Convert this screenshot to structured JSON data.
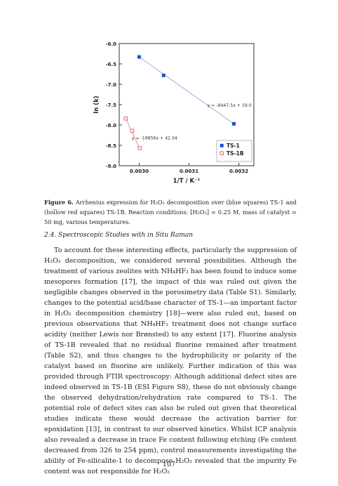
{
  "chart_data": {
    "type": "scatter",
    "xlabel": "1/T / K⁻¹",
    "ylabel": "ln (k)",
    "xlim": [
      0.00296,
      0.00323
    ],
    "ylim": [
      -9.0,
      -6.0
    ],
    "xticks": [
      "0.0030",
      "0.0031",
      "0.0032"
    ],
    "yticks": [
      "-6.0",
      "-6.5",
      "-7.0",
      "-7.5",
      "-8.0",
      "-8.5",
      "-9.0"
    ],
    "grid": false,
    "legend_position": "bottom-right",
    "series": [
      {
        "name": "TS-1",
        "marker": "filled-square",
        "color": "#1f4fd1",
        "x": [
          0.003,
          0.003049,
          0.00319
        ],
        "y": [
          -6.33,
          -6.78,
          -7.97
        ],
        "fit_label": "y = -8447.5x + 19.0"
      },
      {
        "name": "TS-1B",
        "marker": "hollow-square",
        "color": "#e05a5a",
        "x": [
          0.002973,
          0.002986,
          0.003001
        ],
        "y": [
          -7.84,
          -8.14,
          -8.57
        ],
        "fit_label": "y = -16856x + 42.04"
      }
    ]
  },
  "caption": {
    "label": "Figure 6.",
    "text": "Arrhenius expression for H₂O₂ decomposition over (blue squares) TS-1 and (hollow red squares) TS-1B. Reaction conditions: [H₂O₂] = 0.25 M, mass of catalyst = 50 mg, various temperatures."
  },
  "section_heading": "2.4. Spectroscopic Studies with in Situ Raman",
  "body_text": "To account for these interesting effects, particularly the suppression of H₂O₂ decomposition, we considered several possibilities. Although the treatment of various zeolites with NH₄HF₂ has been found to induce some mesopores formation [17], the impact of this was ruled out given the negligible changes observed in the porosimetry data (Table S1). Similarly, changes to the potential acid/base character of TS-1—an important factor in H₂O₂ decomposition chemistry [18]—were also ruled out, based on previous observations that NH₄HF₂ treatment does not change surface acidity (neither Lewis nor Brønsted) to any extent [17]. Fluorine analysis of TS-1B revealed that no residual fluorine remained after treatment (Table S2), and thus changes to the hydrophilicity or polarity of the catalyst based on fluorine are unlikely. Further indication of this was provided through FTIR spectroscopy: Although additional defect sites are indeed observed in TS-1B (ESI Figure S8), these do not obviously change the observed dehydration/rehydration rate compared to TS-1. The potential role of defect sites can also be ruled out given that theoretical studies indicate these would decrease the activation barrier for epoxidation [13], in contrast to our observed kinetics. Whilst ICP analysis also revealed a decrease in trace Fe content following etching (Fe content decreased from 326 to 254 ppm), control measurements investigating the ability of Fe-silicalite-1 to decompose H₂O₂ revealed that the impurity Fe content was not responsible for H₂O₂",
  "page_number": "107"
}
